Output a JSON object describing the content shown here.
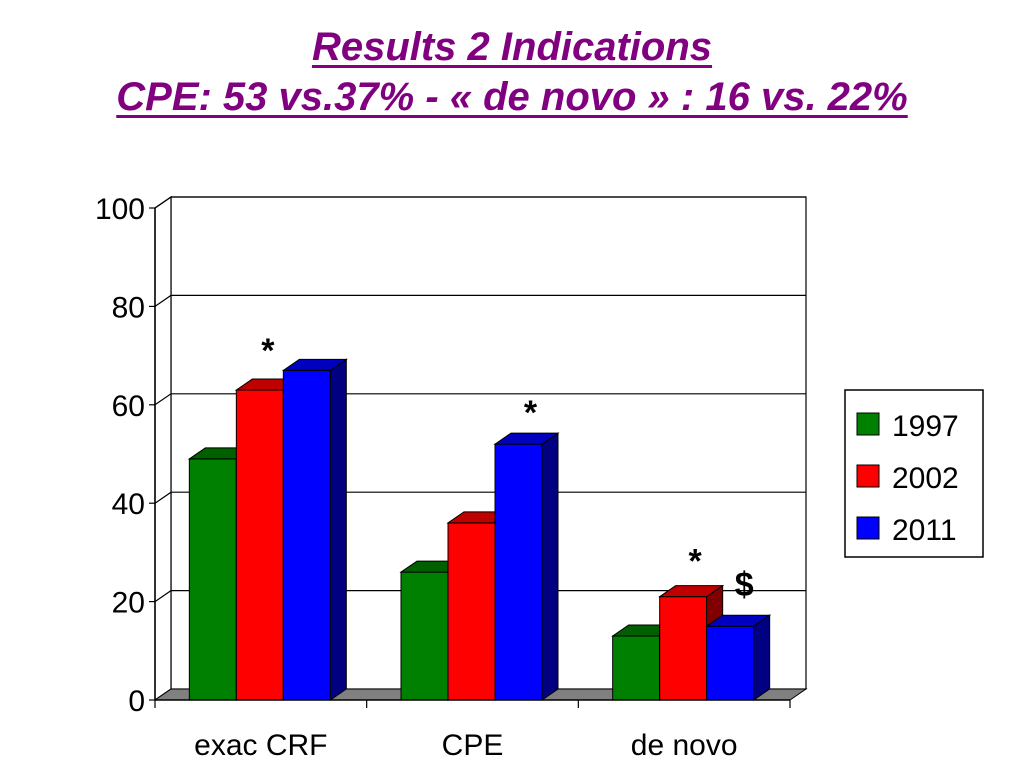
{
  "header": {
    "title_line1": "Results 2 Indications",
    "title_line2": "CPE: 53 vs.37% - « de novo » : 16 vs. 22%",
    "title_color": "#800080"
  },
  "chart_data": {
    "type": "bar",
    "title": "",
    "xlabel": "",
    "ylabel": "",
    "ylim": [
      0,
      100
    ],
    "yticks": [
      "0",
      "20",
      "40",
      "60",
      "80",
      "100"
    ],
    "grid": true,
    "three_d": true,
    "legend_position": "right",
    "categories": [
      "exac CRF",
      "CPE",
      "de novo"
    ],
    "series": [
      {
        "name": "1997",
        "values": [
          49,
          26,
          13
        ],
        "color": "#008000"
      },
      {
        "name": "2002",
        "values": [
          63,
          36,
          21
        ],
        "color": "#ff0000"
      },
      {
        "name": "2011",
        "values": [
          67,
          52,
          15
        ],
        "color": "#0000ff"
      }
    ],
    "annotations": [
      {
        "text": "*",
        "category": "exac CRF"
      },
      {
        "text": "*",
        "category": "CPE"
      },
      {
        "text": "*",
        "category": "de novo"
      },
      {
        "text": "$",
        "category": "de novo"
      }
    ]
  }
}
